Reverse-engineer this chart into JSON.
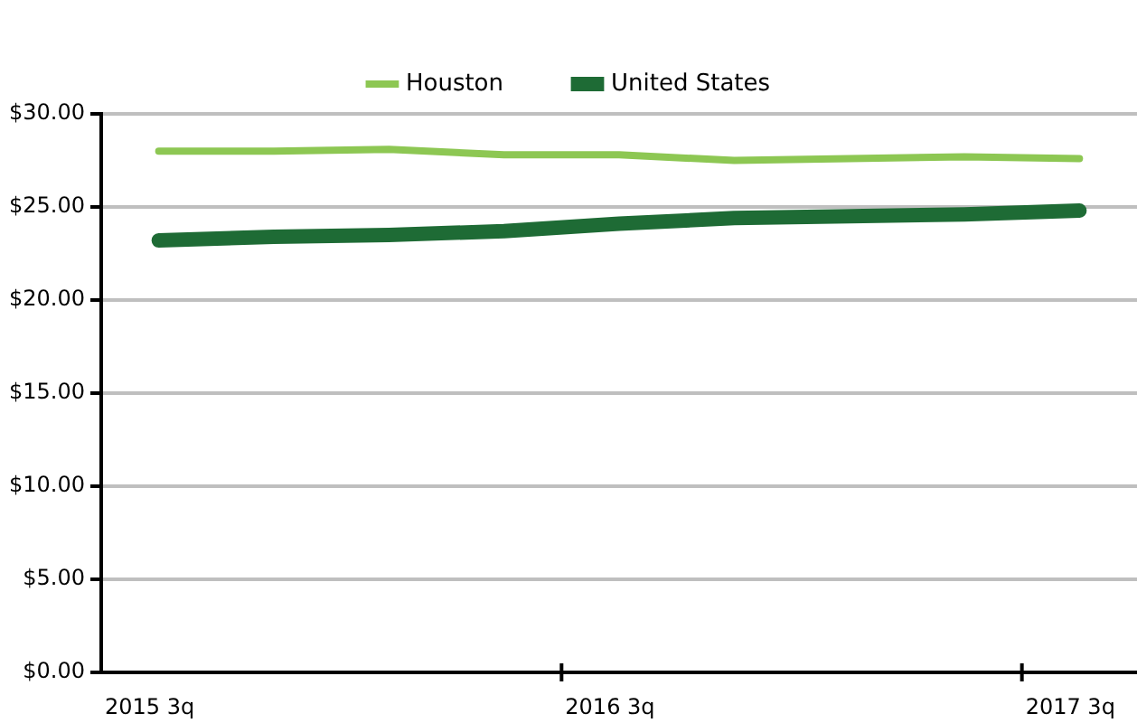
{
  "chart_data": {
    "type": "line",
    "categories": [
      "2015 3q",
      null,
      null,
      null,
      "2016 3q",
      null,
      null,
      null,
      "2017 3q"
    ],
    "series": [
      {
        "name": "Houston",
        "color": "#8dc753",
        "values": [
          28.0,
          28.0,
          28.1,
          27.8,
          27.8,
          27.5,
          27.6,
          27.7,
          27.6
        ]
      },
      {
        "name": "United States",
        "color": "#1e6b35",
        "values": [
          23.2,
          23.4,
          23.5,
          23.7,
          24.1,
          24.4,
          24.5,
          24.6,
          24.8
        ]
      }
    ],
    "ylim": [
      0,
      30
    ],
    "yticks": [
      {
        "value": 0,
        "label": "$0.00"
      },
      {
        "value": 5,
        "label": "$5.00"
      },
      {
        "value": 10,
        "label": "$10.00"
      },
      {
        "value": 15,
        "label": "$15.00"
      },
      {
        "value": 20,
        "label": "$20.00"
      },
      {
        "value": 25,
        "label": "$25.00"
      },
      {
        "value": 30,
        "label": "$30.00"
      }
    ],
    "grid": "y",
    "legend": "top",
    "marker": "none",
    "line_style": "solid"
  }
}
